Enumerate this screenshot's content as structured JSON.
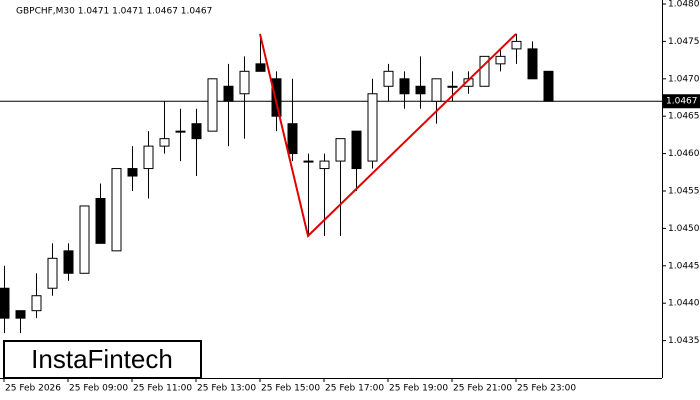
{
  "chart_data": {
    "type": "candlestick",
    "title": "GBPCHF,M30  1.0471 1.0471 1.0467 1.0467",
    "watermark": "InstaFintech",
    "categories": [
      "25 Feb 2026",
      null,
      null,
      null,
      "25 Feb 09:00",
      null,
      null,
      null,
      "25 Feb 11:00",
      null,
      null,
      null,
      "25 Feb 13:00",
      null,
      null,
      null,
      "25 Feb 15:00",
      null,
      null,
      null,
      "25 Feb 17:00",
      null,
      null,
      null,
      "25 Feb 19:00",
      null,
      null,
      null,
      "25 Feb 21:00",
      null,
      null,
      null,
      "25 Feb 23:00",
      null,
      null
    ],
    "open": [
      1.0442,
      1.0439,
      1.0439,
      1.0442,
      1.0447,
      1.0444,
      1.0454,
      1.0447,
      1.0458,
      1.0458,
      1.0461,
      1.0463,
      1.0464,
      1.0463,
      1.0469,
      1.0468,
      1.0472,
      1.047,
      1.0464,
      1.0459,
      1.0458,
      1.0459,
      1.0463,
      1.0459,
      1.0469,
      1.047,
      1.0469,
      1.0467,
      1.0469,
      1.0469,
      1.0469,
      1.0472,
      1.0474,
      1.0474,
      1.0471
    ],
    "high": [
      1.0445,
      1.0439,
      1.0444,
      1.0448,
      1.0448,
      1.0453,
      1.0456,
      1.0458,
      1.0461,
      1.0463,
      1.0467,
      1.0466,
      1.0466,
      1.047,
      1.0472,
      1.0473,
      1.0476,
      1.0471,
      1.047,
      1.046,
      1.046,
      1.0462,
      1.0463,
      1.047,
      1.0472,
      1.0471,
      1.0473,
      1.047,
      1.0471,
      1.0471,
      1.0473,
      1.0474,
      1.0476,
      1.0475,
      1.0471
    ],
    "low": [
      1.0436,
      1.0436,
      1.0438,
      1.0441,
      1.0443,
      1.0444,
      1.0448,
      1.0447,
      1.0455,
      1.0454,
      1.046,
      1.0459,
      1.0457,
      1.0463,
      1.0461,
      1.0462,
      1.0471,
      1.0463,
      1.0459,
      1.0449,
      1.0449,
      1.0449,
      1.0455,
      1.0458,
      1.0467,
      1.0466,
      1.0466,
      1.0464,
      1.0467,
      1.0468,
      1.0469,
      1.0471,
      1.0472,
      1.047,
      1.0467
    ],
    "close": [
      1.0438,
      1.0438,
      1.0441,
      1.0446,
      1.0444,
      1.0453,
      1.0448,
      1.0458,
      1.0457,
      1.0461,
      1.0462,
      1.0463,
      1.0462,
      1.047,
      1.0467,
      1.0471,
      1.0471,
      1.0465,
      1.046,
      1.0459,
      1.0459,
      1.0462,
      1.0458,
      1.0468,
      1.0471,
      1.0468,
      1.0468,
      1.047,
      1.0469,
      1.047,
      1.0473,
      1.0473,
      1.0475,
      1.047,
      1.0467
    ],
    "bull_color": "#ffffff",
    "bear_color": "#000000",
    "current_price": 1.0467,
    "pattern": {
      "color": "#e00000",
      "indices": [
        16,
        19,
        32
      ],
      "values": [
        1.0476,
        1.0449,
        1.0476
      ]
    },
    "ylim": [
      1.043,
      1.048
    ],
    "yticks": [
      {
        "value": 1.048,
        "label": "1.0480"
      },
      1.0475,
      {
        "value": 1.047,
        "label": "1.0470"
      },
      1.0465,
      {
        "value": 1.046,
        "label": "1.0460"
      },
      1.0455,
      {
        "value": 1.045,
        "label": "1.0450"
      },
      1.0445,
      {
        "value": 1.044,
        "label": "1.0440"
      },
      1.0435
    ]
  }
}
